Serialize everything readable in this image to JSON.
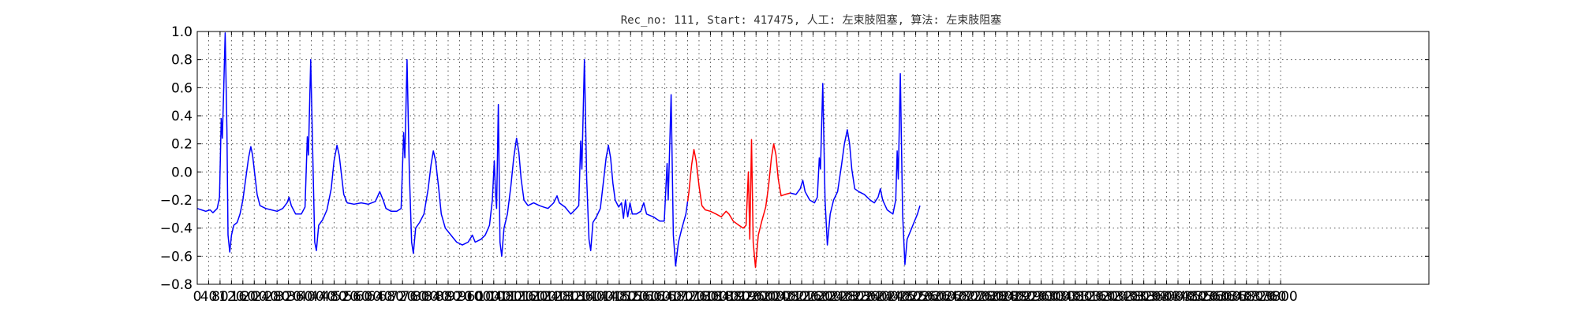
{
  "chart_data": {
    "type": "line",
    "title": "Rec_no: 111, Start: 417475, 人工: 左束肢阻塞, 算法: 左束肢阻塞",
    "xlabel": "",
    "ylabel": "",
    "xlim": [
      0,
      4320
    ],
    "ylim": [
      -0.8,
      1.0
    ],
    "grid": true,
    "legend": "none",
    "y_ticks": [
      -0.8,
      -0.6,
      -0.4,
      -0.2,
      0.0,
      0.2,
      0.4,
      0.6,
      0.8,
      1.0
    ],
    "x_tick_step": 40,
    "x_tick_max": 3800,
    "colors": {
      "normal": "#0000ff",
      "highlight": "#ff0000",
      "axes": "#000000"
    },
    "highlight_range": [
      1720,
      2080
    ],
    "series": [
      {
        "points": [
          [
            0,
            -0.26
          ],
          [
            15,
            -0.27
          ],
          [
            30,
            -0.28
          ],
          [
            45,
            -0.27
          ],
          [
            55,
            -0.29
          ],
          [
            60,
            -0.28
          ],
          [
            70,
            -0.26
          ],
          [
            78,
            -0.18
          ],
          [
            84,
            0.38
          ],
          [
            88,
            0.24
          ],
          [
            92,
            0.52
          ],
          [
            98,
            0.99
          ],
          [
            104,
            0.3
          ],
          [
            108,
            -0.45
          ],
          [
            114,
            -0.57
          ],
          [
            120,
            -0.45
          ],
          [
            128,
            -0.38
          ],
          [
            140,
            -0.36
          ],
          [
            150,
            -0.3
          ],
          [
            160,
            -0.2
          ],
          [
            170,
            -0.05
          ],
          [
            180,
            0.1
          ],
          [
            188,
            0.18
          ],
          [
            194,
            0.12
          ],
          [
            202,
            -0.02
          ],
          [
            210,
            -0.16
          ],
          [
            220,
            -0.24
          ],
          [
            240,
            -0.26
          ],
          [
            260,
            -0.27
          ],
          [
            280,
            -0.28
          ],
          [
            300,
            -0.26
          ],
          [
            315,
            -0.22
          ],
          [
            322,
            -0.18
          ],
          [
            330,
            -0.24
          ],
          [
            345,
            -0.3
          ],
          [
            365,
            -0.3
          ],
          [
            378,
            -0.25
          ],
          [
            386,
            0.25
          ],
          [
            390,
            0.12
          ],
          [
            398,
            0.8
          ],
          [
            406,
            0.05
          ],
          [
            412,
            -0.5
          ],
          [
            418,
            -0.56
          ],
          [
            426,
            -0.38
          ],
          [
            440,
            -0.34
          ],
          [
            455,
            -0.27
          ],
          [
            470,
            -0.12
          ],
          [
            480,
            0.08
          ],
          [
            490,
            0.19
          ],
          [
            498,
            0.12
          ],
          [
            506,
            -0.02
          ],
          [
            514,
            -0.16
          ],
          [
            526,
            -0.22
          ],
          [
            550,
            -0.23
          ],
          [
            575,
            -0.22
          ],
          [
            600,
            -0.23
          ],
          [
            625,
            -0.21
          ],
          [
            640,
            -0.14
          ],
          [
            652,
            -0.2
          ],
          [
            662,
            -0.26
          ],
          [
            680,
            -0.28
          ],
          [
            700,
            -0.28
          ],
          [
            715,
            -0.26
          ],
          [
            724,
            0.28
          ],
          [
            728,
            0.1
          ],
          [
            736,
            0.8
          ],
          [
            744,
            0.0
          ],
          [
            752,
            -0.5
          ],
          [
            758,
            -0.58
          ],
          [
            766,
            -0.4
          ],
          [
            780,
            -0.36
          ],
          [
            795,
            -0.3
          ],
          [
            810,
            -0.12
          ],
          [
            820,
            0.05
          ],
          [
            828,
            0.15
          ],
          [
            836,
            0.08
          ],
          [
            846,
            -0.1
          ],
          [
            856,
            -0.3
          ],
          [
            870,
            -0.4
          ],
          [
            890,
            -0.45
          ],
          [
            910,
            -0.5
          ],
          [
            930,
            -0.52
          ],
          [
            950,
            -0.5
          ],
          [
            965,
            -0.45
          ],
          [
            975,
            -0.5
          ],
          [
            995,
            -0.48
          ],
          [
            1010,
            -0.45
          ],
          [
            1025,
            -0.38
          ],
          [
            1035,
            -0.2
          ],
          [
            1042,
            0.08
          ],
          [
            1046,
            -0.15
          ],
          [
            1050,
            -0.26
          ],
          [
            1056,
            0.48
          ],
          [
            1062,
            -0.5
          ],
          [
            1068,
            -0.6
          ],
          [
            1076,
            -0.4
          ],
          [
            1088,
            -0.3
          ],
          [
            1100,
            -0.1
          ],
          [
            1110,
            0.1
          ],
          [
            1120,
            0.24
          ],
          [
            1128,
            0.14
          ],
          [
            1136,
            -0.05
          ],
          [
            1146,
            -0.2
          ],
          [
            1160,
            -0.24
          ],
          [
            1180,
            -0.22
          ],
          [
            1200,
            -0.24
          ],
          [
            1215,
            -0.25
          ],
          [
            1230,
            -0.26
          ],
          [
            1250,
            -0.22
          ],
          [
            1262,
            -0.17
          ],
          [
            1270,
            -0.22
          ],
          [
            1290,
            -0.25
          ],
          [
            1310,
            -0.3
          ],
          [
            1325,
            -0.27
          ],
          [
            1338,
            -0.24
          ],
          [
            1345,
            0.22
          ],
          [
            1349,
            0.02
          ],
          [
            1358,
            0.8
          ],
          [
            1366,
            -0.05
          ],
          [
            1374,
            -0.48
          ],
          [
            1380,
            -0.56
          ],
          [
            1388,
            -0.36
          ],
          [
            1400,
            -0.32
          ],
          [
            1414,
            -0.26
          ],
          [
            1424,
            -0.08
          ],
          [
            1434,
            0.1
          ],
          [
            1442,
            0.19
          ],
          [
            1450,
            0.1
          ],
          [
            1458,
            -0.08
          ],
          [
            1466,
            -0.2
          ],
          [
            1478,
            -0.25
          ],
          [
            1488,
            -0.22
          ],
          [
            1495,
            -0.33
          ],
          [
            1502,
            -0.2
          ],
          [
            1510,
            -0.32
          ],
          [
            1518,
            -0.22
          ],
          [
            1526,
            -0.3
          ],
          [
            1540,
            -0.3
          ],
          [
            1556,
            -0.28
          ],
          [
            1566,
            -0.22
          ],
          [
            1576,
            -0.3
          ],
          [
            1600,
            -0.32
          ],
          [
            1622,
            -0.35
          ],
          [
            1638,
            -0.35
          ],
          [
            1648,
            0.06
          ],
          [
            1652,
            -0.2
          ],
          [
            1662,
            0.55
          ],
          [
            1670,
            -0.45
          ],
          [
            1678,
            -0.67
          ],
          [
            1688,
            -0.5
          ],
          [
            1700,
            -0.4
          ],
          [
            1714,
            -0.3
          ],
          [
            1724,
            -0.15
          ],
          [
            1734,
            0.05
          ],
          [
            1742,
            0.16
          ],
          [
            1750,
            0.08
          ],
          [
            1760,
            -0.1
          ],
          [
            1770,
            -0.24
          ],
          [
            1782,
            -0.27
          ],
          [
            1800,
            -0.28
          ],
          [
            1820,
            -0.3
          ],
          [
            1838,
            -0.32
          ],
          [
            1855,
            -0.28
          ],
          [
            1865,
            -0.3
          ],
          [
            1880,
            -0.35
          ],
          [
            1900,
            -0.38
          ],
          [
            1915,
            -0.4
          ],
          [
            1925,
            -0.38
          ],
          [
            1933,
            0.0
          ],
          [
            1938,
            -0.48
          ],
          [
            1944,
            0.23
          ],
          [
            1950,
            -0.5
          ],
          [
            1958,
            -0.68
          ],
          [
            1968,
            -0.45
          ],
          [
            1980,
            -0.35
          ],
          [
            1994,
            -0.25
          ],
          [
            2004,
            -0.1
          ],
          [
            2014,
            0.1
          ],
          [
            2022,
            0.2
          ],
          [
            2030,
            0.12
          ],
          [
            2038,
            -0.05
          ],
          [
            2048,
            -0.17
          ],
          [
            2062,
            -0.16
          ],
          [
            2080,
            -0.15
          ],
          [
            2100,
            -0.16
          ],
          [
            2115,
            -0.12
          ],
          [
            2124,
            -0.06
          ],
          [
            2132,
            -0.14
          ],
          [
            2148,
            -0.2
          ],
          [
            2165,
            -0.22
          ],
          [
            2175,
            -0.18
          ],
          [
            2182,
            0.1
          ],
          [
            2186,
            0.02
          ],
          [
            2194,
            0.63
          ],
          [
            2202,
            -0.2
          ],
          [
            2210,
            -0.52
          ],
          [
            2220,
            -0.3
          ],
          [
            2232,
            -0.2
          ],
          [
            2246,
            -0.14
          ],
          [
            2260,
            0.05
          ],
          [
            2270,
            0.2
          ],
          [
            2280,
            0.3
          ],
          [
            2288,
            0.2
          ],
          [
            2296,
            0.02
          ],
          [
            2306,
            -0.12
          ],
          [
            2320,
            -0.14
          ],
          [
            2340,
            -0.16
          ],
          [
            2360,
            -0.2
          ],
          [
            2375,
            -0.22
          ],
          [
            2388,
            -0.18
          ],
          [
            2396,
            -0.12
          ],
          [
            2404,
            -0.2
          ],
          [
            2420,
            -0.27
          ],
          [
            2440,
            -0.3
          ],
          [
            2450,
            -0.2
          ],
          [
            2455,
            0.15
          ],
          [
            2459,
            -0.05
          ],
          [
            2466,
            0.7
          ],
          [
            2474,
            -0.3
          ],
          [
            2482,
            -0.66
          ],
          [
            2490,
            -0.48
          ],
          [
            2502,
            -0.42
          ],
          [
            2514,
            -0.36
          ],
          [
            2526,
            -0.3
          ],
          [
            2535,
            -0.24
          ]
        ]
      }
    ]
  }
}
